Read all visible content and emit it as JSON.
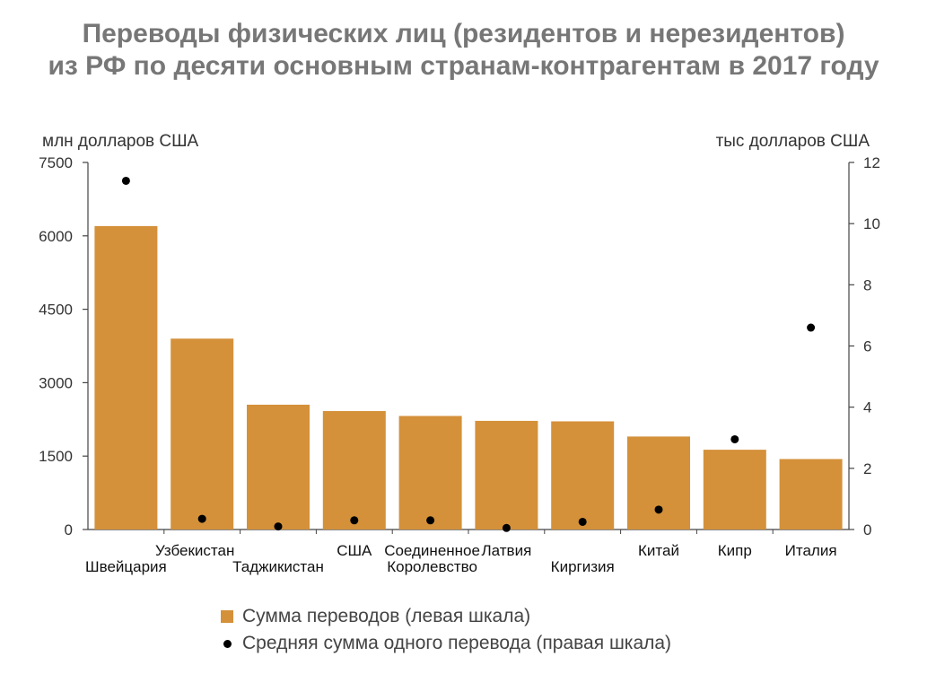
{
  "chart_data": {
    "type": "bar",
    "title_lines": [
      "Переводы физических лиц (резидентов и нерезидентов)",
      "из РФ по десяти основным странам-контрагентам в 2017 году"
    ],
    "ylabel_left": "млн долларов США",
    "ylabel_right": "тыс долларов США",
    "ylim_left": [
      0,
      7500
    ],
    "yticks_left": [
      0,
      1500,
      3000,
      4500,
      6000,
      7500
    ],
    "ylim_right": [
      0,
      12
    ],
    "yticks_right": [
      0,
      2,
      4,
      6,
      8,
      10,
      12
    ],
    "categories": [
      "Швейцария",
      "Узбекистан",
      "Таджикистан",
      "США",
      "Соединенное Королевство",
      "Латвия",
      "Киргизия",
      "Китай",
      "Кипр",
      "Италия"
    ],
    "series": [
      {
        "name": "Сумма переводов (левая шкала)",
        "axis": "left",
        "kind": "bar",
        "color": "#D4913A",
        "values": [
          6200,
          3900,
          2550,
          2420,
          2320,
          2220,
          2210,
          1900,
          1630,
          1440
        ]
      },
      {
        "name": "Средняя сумма одного перевода (правая шкала)",
        "axis": "right",
        "kind": "scatter",
        "color": "#000000",
        "values": [
          11.4,
          0.35,
          0.1,
          0.3,
          0.3,
          0.05,
          0.25,
          0.65,
          2.95,
          6.6
        ]
      }
    ],
    "legend_position": "bottom",
    "grid": false
  }
}
